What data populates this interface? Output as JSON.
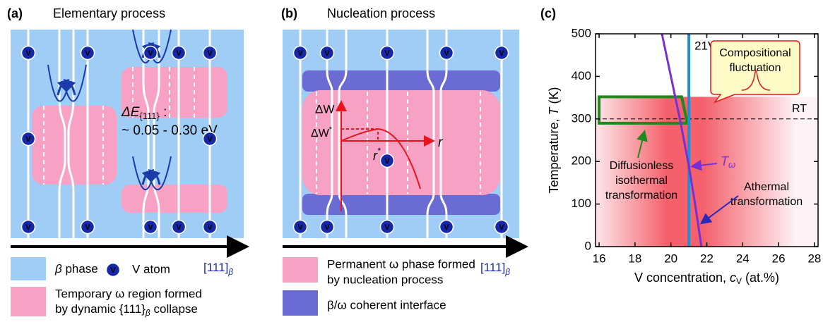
{
  "panel_a": {
    "label": "(a)",
    "title": "Elementary process",
    "atom_symbol": "V",
    "energy": {
      "symbol": "ΔE",
      "sub": "{111}",
      "colon": " :",
      "range": "~ 0.05 - 0.30 eV"
    },
    "legend": {
      "beta_symbol": "β",
      "beta_text": " phase",
      "v_atom": "V atom",
      "direction": {
        "text": "[111]",
        "sub": "β"
      },
      "temporary_line1": "Temporary ω region formed",
      "temporary_line2": "by dynamic {111}",
      "temporary_sub": "β",
      "temporary_end": " collapse"
    }
  },
  "panel_b": {
    "label": "(b)",
    "title": "Nucleation process",
    "energy_axis": "ΔW",
    "barrier": {
      "main": "ΔW",
      "sup": "*"
    },
    "radius_star": {
      "main": "r",
      "sup": "*"
    },
    "radius": "r",
    "legend": {
      "permanent_line1": "Permanent ω phase formed",
      "permanent_line2": "by nucleation process",
      "direction": {
        "text": "[111]",
        "sub": "β"
      },
      "interface": "β/ω coherent interface"
    }
  },
  "chart_data": {
    "type": "line",
    "label": "(c)",
    "ylabel": {
      "text": "Temperature, ",
      "var": "T",
      "unit": " (K)"
    },
    "xlabel": {
      "text": "V concentration, ",
      "var": "c",
      "sub": "V",
      "unit": " (at.%)"
    },
    "xlim": [
      15.8,
      28.2
    ],
    "ylim": [
      0,
      500
    ],
    "xticks": [
      16,
      18,
      20,
      22,
      24,
      26,
      28
    ],
    "yticks": [
      0,
      100,
      200,
      300,
      400,
      500
    ],
    "x": [
      19.5,
      20.0,
      20.5,
      21.0,
      21.35,
      21.7
    ],
    "values": [
      500,
      400,
      300,
      190,
      100,
      0
    ],
    "color": "#7a2fd4",
    "t_omega_label": {
      "main": "T",
      "sub": "ω"
    },
    "composition_line": {
      "x": 21,
      "label": "21V",
      "color": "#1f8fd6"
    },
    "room_temperature": {
      "y": 300,
      "label": "RT"
    },
    "fluctuation": {
      "center": 21,
      "ymax": 352,
      "label": [
        "Compositional",
        "fluctuation"
      ]
    },
    "isothermal_window": {
      "x": [
        16,
        20.6
      ],
      "y": [
        290,
        352
      ],
      "color": "#1e8a1e",
      "label": [
        "Diffusionless",
        "isothermal",
        "transformation"
      ]
    },
    "athermal_label": [
      "Athermal",
      "transformation"
    ]
  }
}
